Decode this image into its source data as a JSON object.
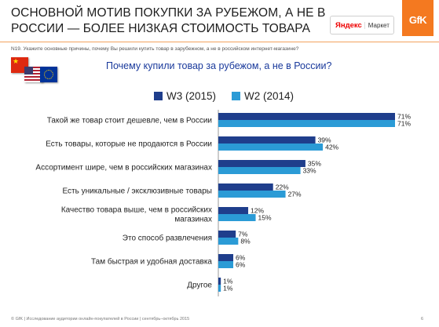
{
  "header": {
    "title_line1": "ОСНОВНОЙ МОТИВ ПОКУПКИ ЗА РУБЕЖОМ, А НЕ В",
    "title_line2": "РОССИИ — БОЛЕЕ НИЗКАЯ СТОИМОСТЬ ТОВАРА",
    "yandex_logo": "Яндекс",
    "market_logo": "Маркет",
    "gfk_logo": "GfK"
  },
  "question": "N19. Укажите основные причины, почему Вы решили купить товар в зарубежном, а не в российском интернет-магазине?",
  "flags": [
    "cn-flag",
    "us-flag",
    "eu-flag"
  ],
  "chart_data": {
    "type": "bar",
    "orientation": "horizontal",
    "title": "Почему купили товар за рубежом, а не в России?",
    "categories": [
      "Такой же товар стоит дешевле, чем в России",
      "Есть товары, которые не продаются в России",
      "Ассортимент шире, чем в российских магазинах",
      "Есть уникальные / эксклюзивные товары",
      "Качество товара выше, чем в российских магазинах",
      "Это способ развлечения",
      "Там быстрая и удобная доставка",
      "Другое"
    ],
    "series": [
      {
        "name": "W3 (2015)",
        "color": "#1f3e8c",
        "values": [
          71,
          39,
          35,
          22,
          12,
          7,
          6,
          1
        ]
      },
      {
        "name": "W2 (2014)",
        "color": "#2b9bd6",
        "values": [
          71,
          42,
          33,
          27,
          15,
          8,
          6,
          1
        ]
      }
    ],
    "value_suffix": "%",
    "xlim": [
      0,
      71
    ],
    "legend_position": "top",
    "grid": false
  },
  "footer": "© GfK | Исследование аудитории онлайн-покупателей в России | сентябрь–октябрь 2015",
  "page_number": "6"
}
